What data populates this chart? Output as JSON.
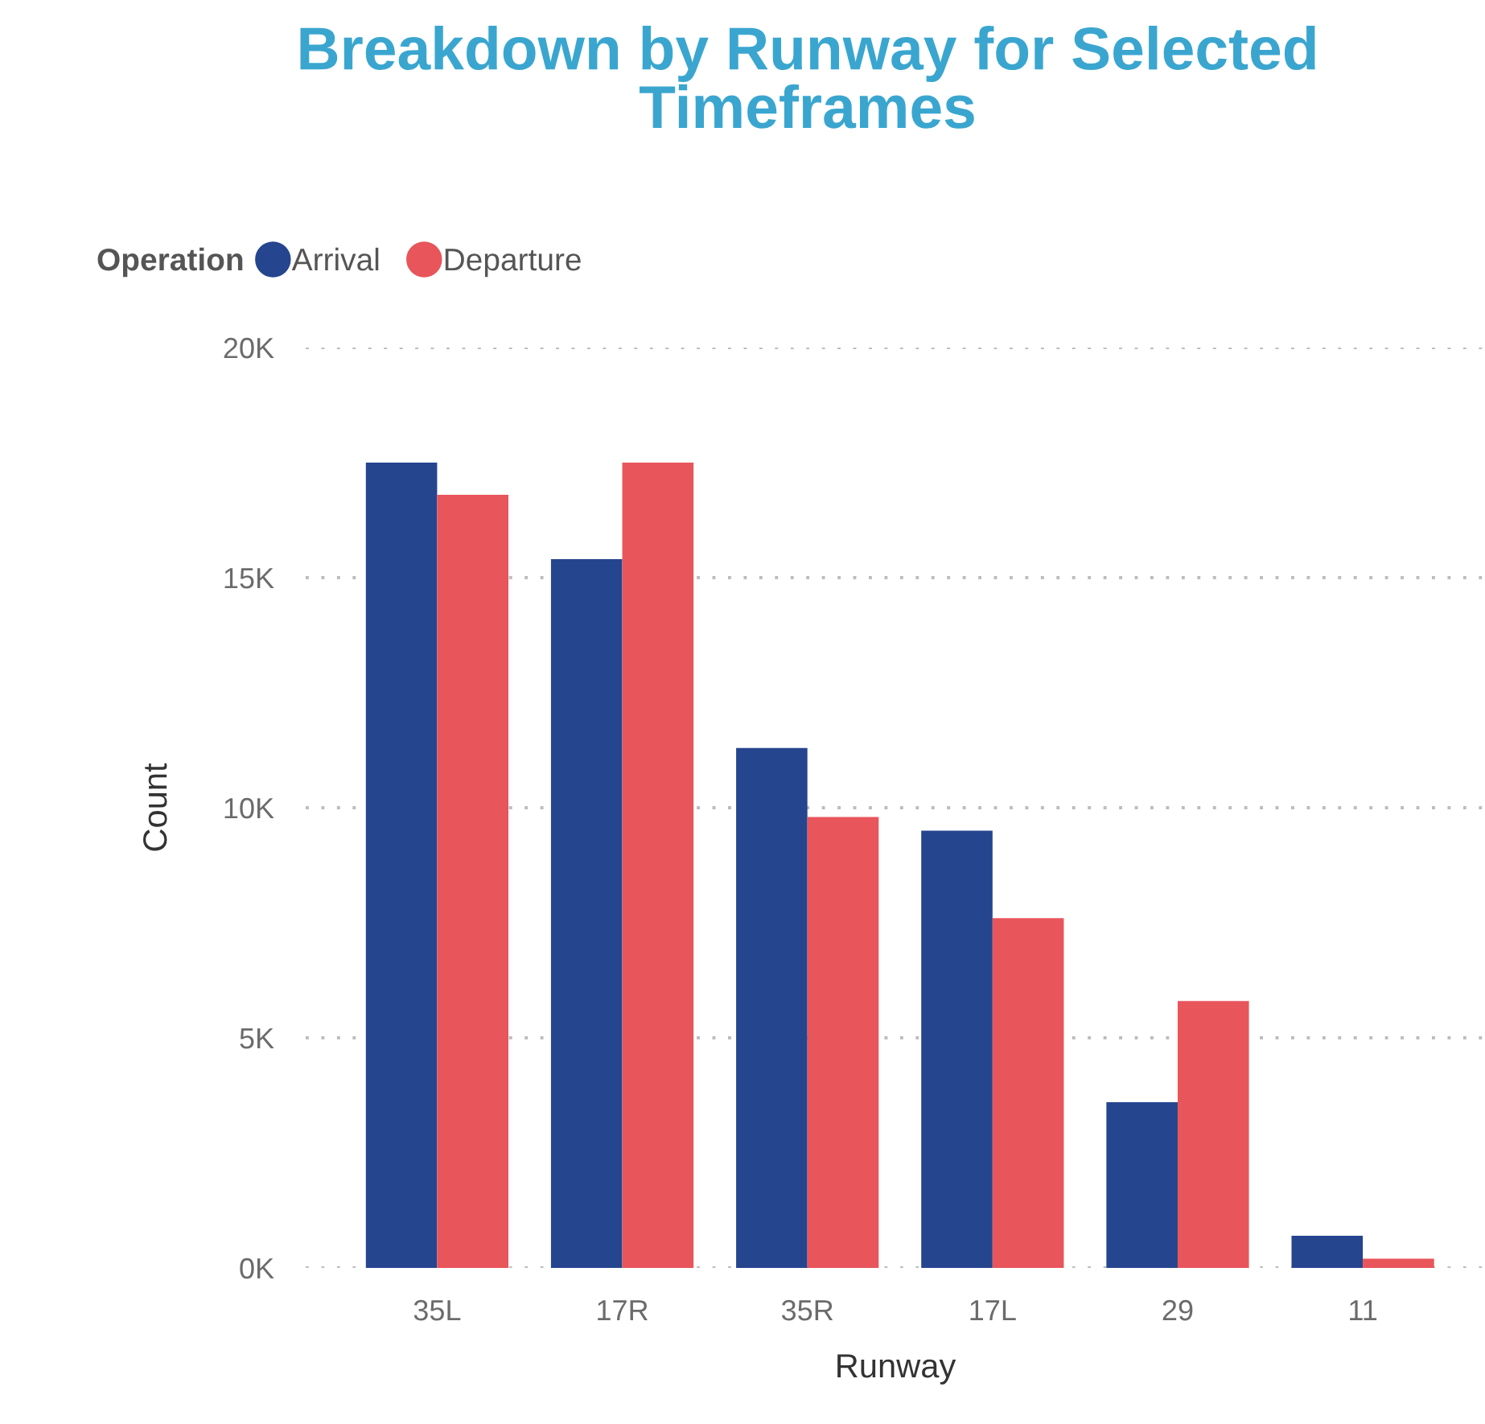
{
  "chart_data": {
    "type": "bar",
    "title": "Breakdown by Runway for Selected Timeframes",
    "xlabel": "Runway",
    "ylabel": "Count",
    "legend_title": "Operation",
    "categories": [
      "35L",
      "17R",
      "35R",
      "17L",
      "29",
      "11"
    ],
    "series": [
      {
        "name": "Arrival",
        "color": "#25458f",
        "values": [
          17500,
          15400,
          11300,
          9500,
          3600,
          700
        ]
      },
      {
        "name": "Departure",
        "color": "#e8555b",
        "values": [
          16800,
          17500,
          9800,
          7600,
          5800,
          200
        ]
      }
    ],
    "ylim": [
      0,
      20000
    ],
    "yticks": [
      {
        "value": 0,
        "label": "0K"
      },
      {
        "value": 5000,
        "label": "5K"
      },
      {
        "value": 10000,
        "label": "10K"
      },
      {
        "value": 15000,
        "label": "15K"
      },
      {
        "value": 20000,
        "label": "20K"
      }
    ],
    "grid": "y",
    "legend": "top left"
  }
}
